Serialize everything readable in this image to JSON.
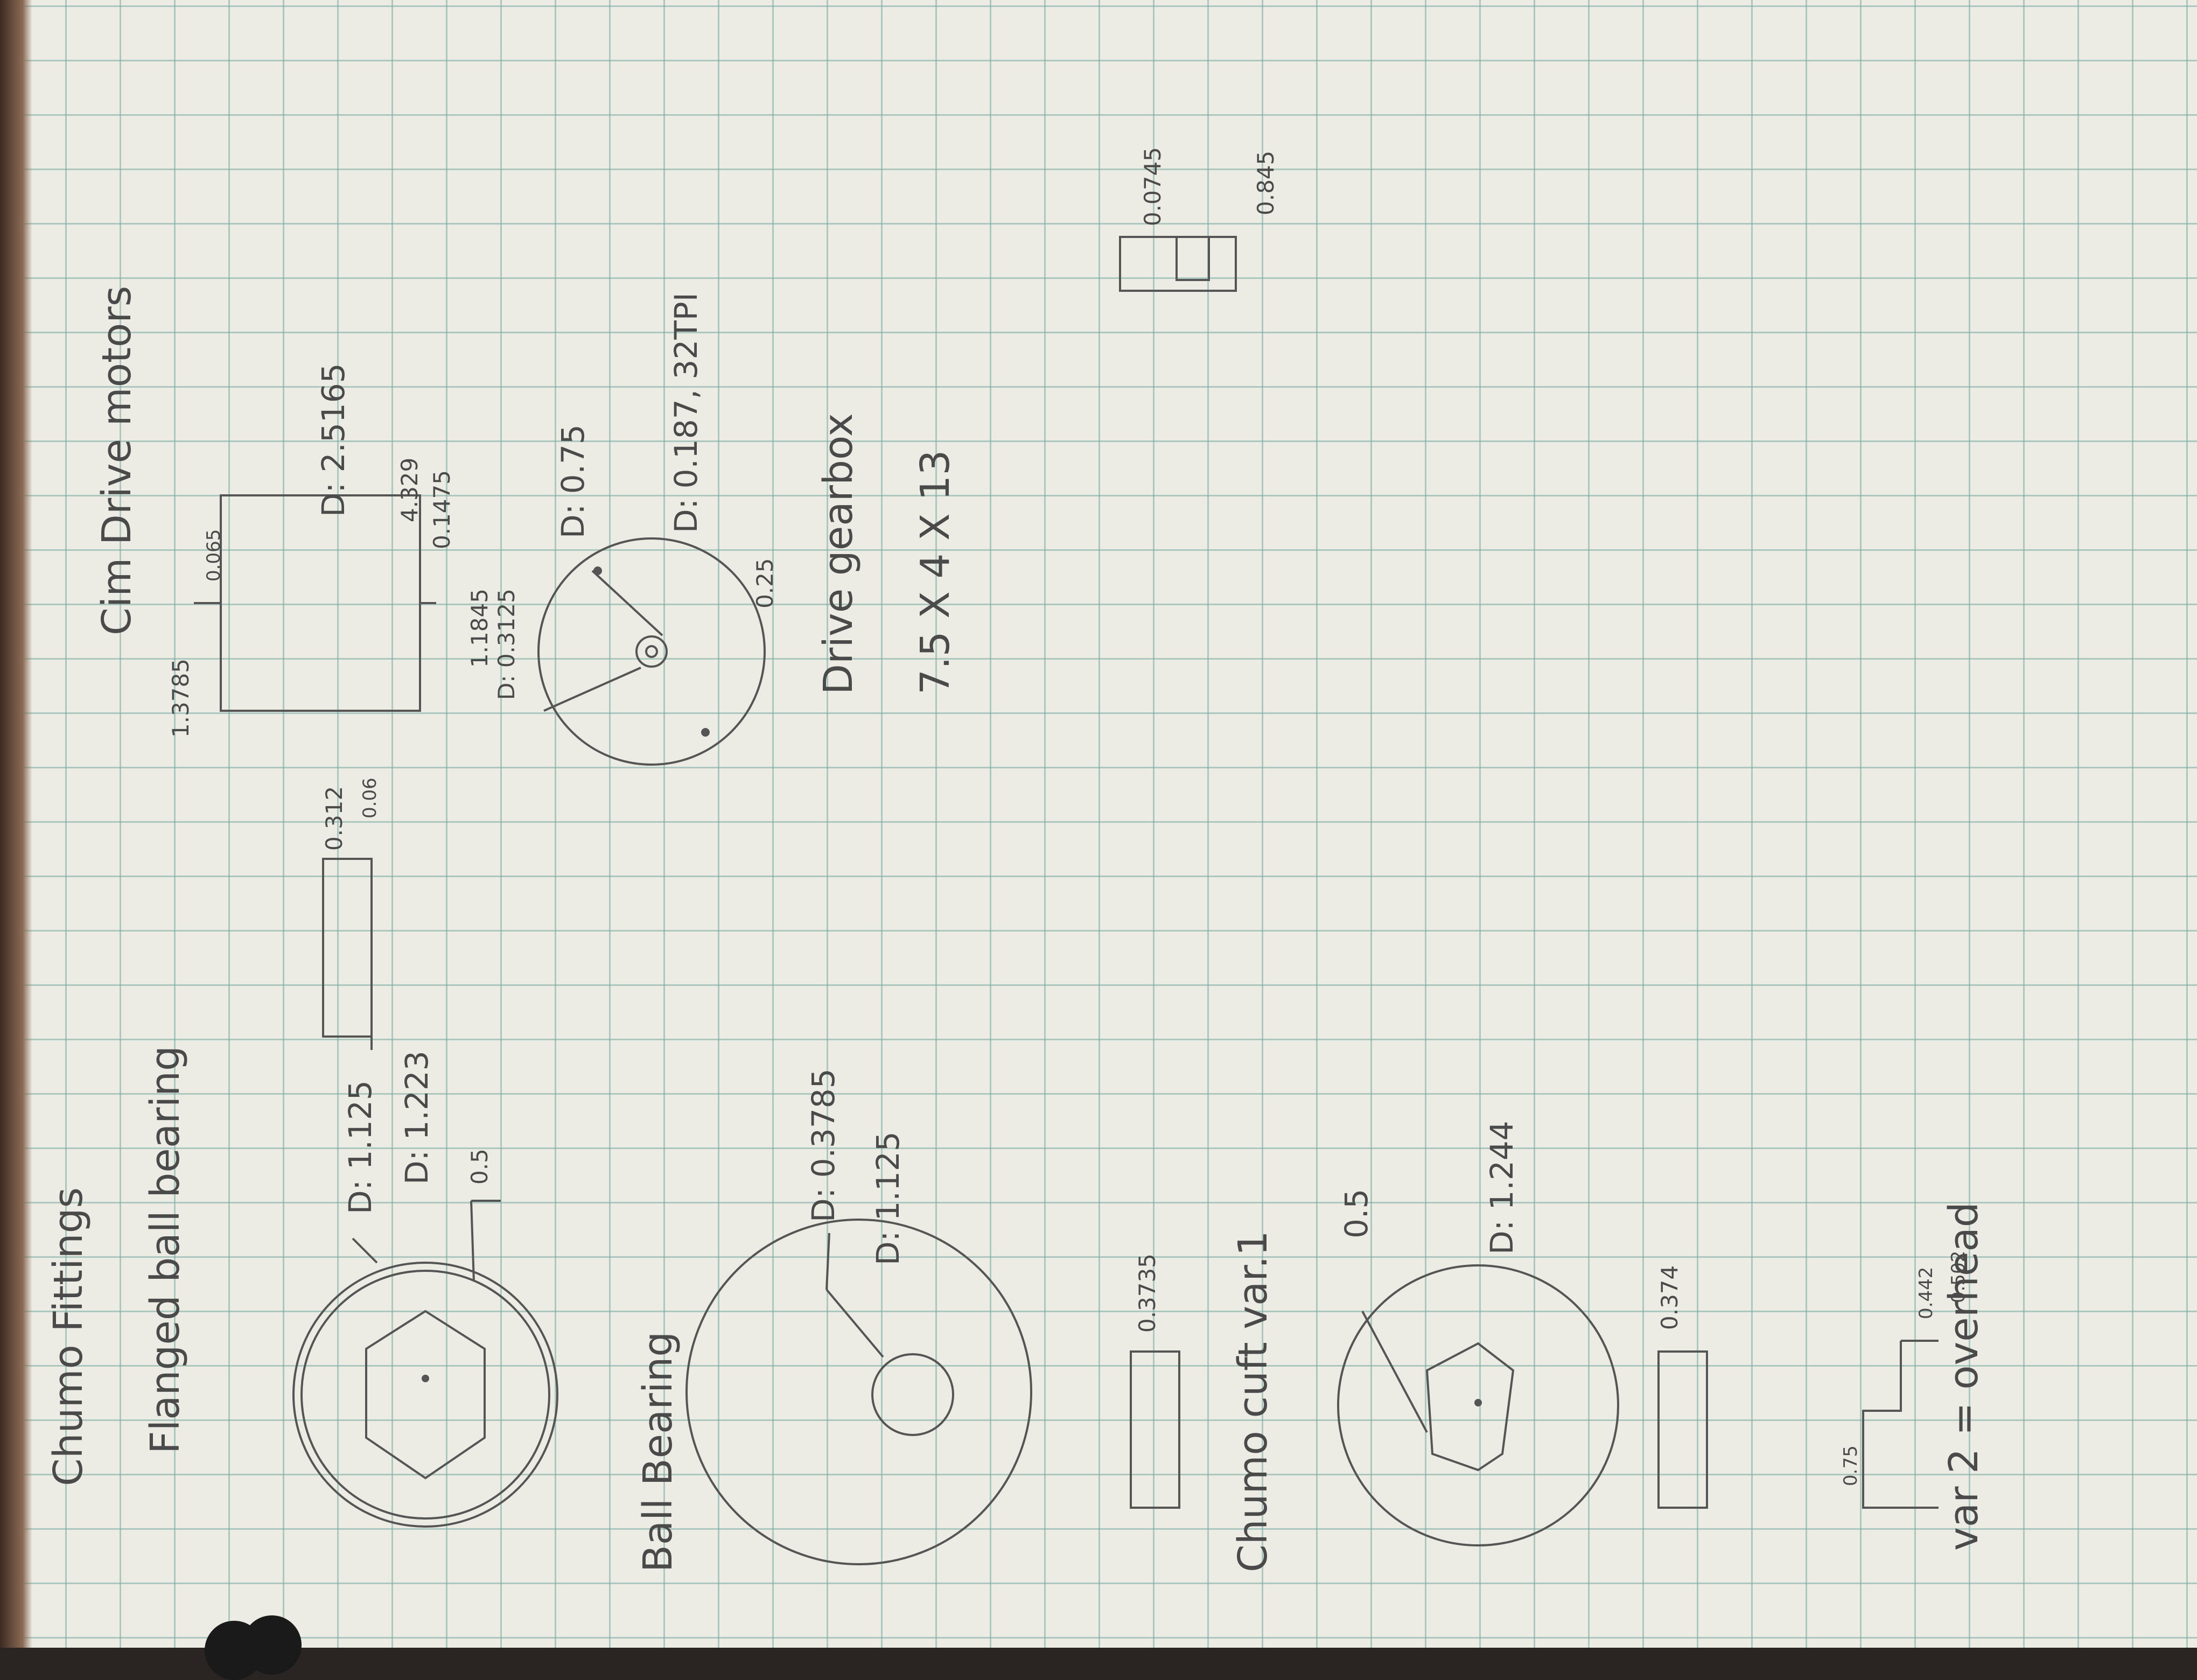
{
  "sheet": {
    "title": "Chumo Fittings",
    "right_title": "Cim Drive motors",
    "sections": {
      "flanged": "Flanged ball bearing",
      "ball": "Ball Bearing",
      "chumo_var1": "Chumo cuft var.1",
      "var2": "var 2 = overhead",
      "gearbox": "Drive gearbox"
    },
    "dims": {
      "flanged_d1": "D: 1.125",
      "flanged_d2": "D: 1.223",
      "flanged_hex": "0.5",
      "flanged_side_a": "0.312",
      "flanged_side_b": "0.06",
      "ball_d1": "D: 0.3785",
      "ball_d2": "D: 1.125",
      "ball_side": "0.3735",
      "var1_hex": "0.5",
      "var1_d": "D: 1.244",
      "var1_side": "0.374",
      "var2_a": "0.75",
      "var2_b": "0.442",
      "var2_c": "0.502",
      "cim_a": "1.3785",
      "cim_b": "0.065",
      "cim_d": "D: 2.5165",
      "cim_len": "4.329",
      "cim_c": "0.1475",
      "cim_e": "1.1845",
      "cim_bolt": "D: 0.3125",
      "cim_bc": "D: 0.75",
      "cim_shaft": "D: 0.187, 32TPI",
      "cim_key": "0.25",
      "small_a": "0.0745",
      "small_b": "0.845",
      "gearbox_size": "7.5 X 4 X 13"
    }
  }
}
